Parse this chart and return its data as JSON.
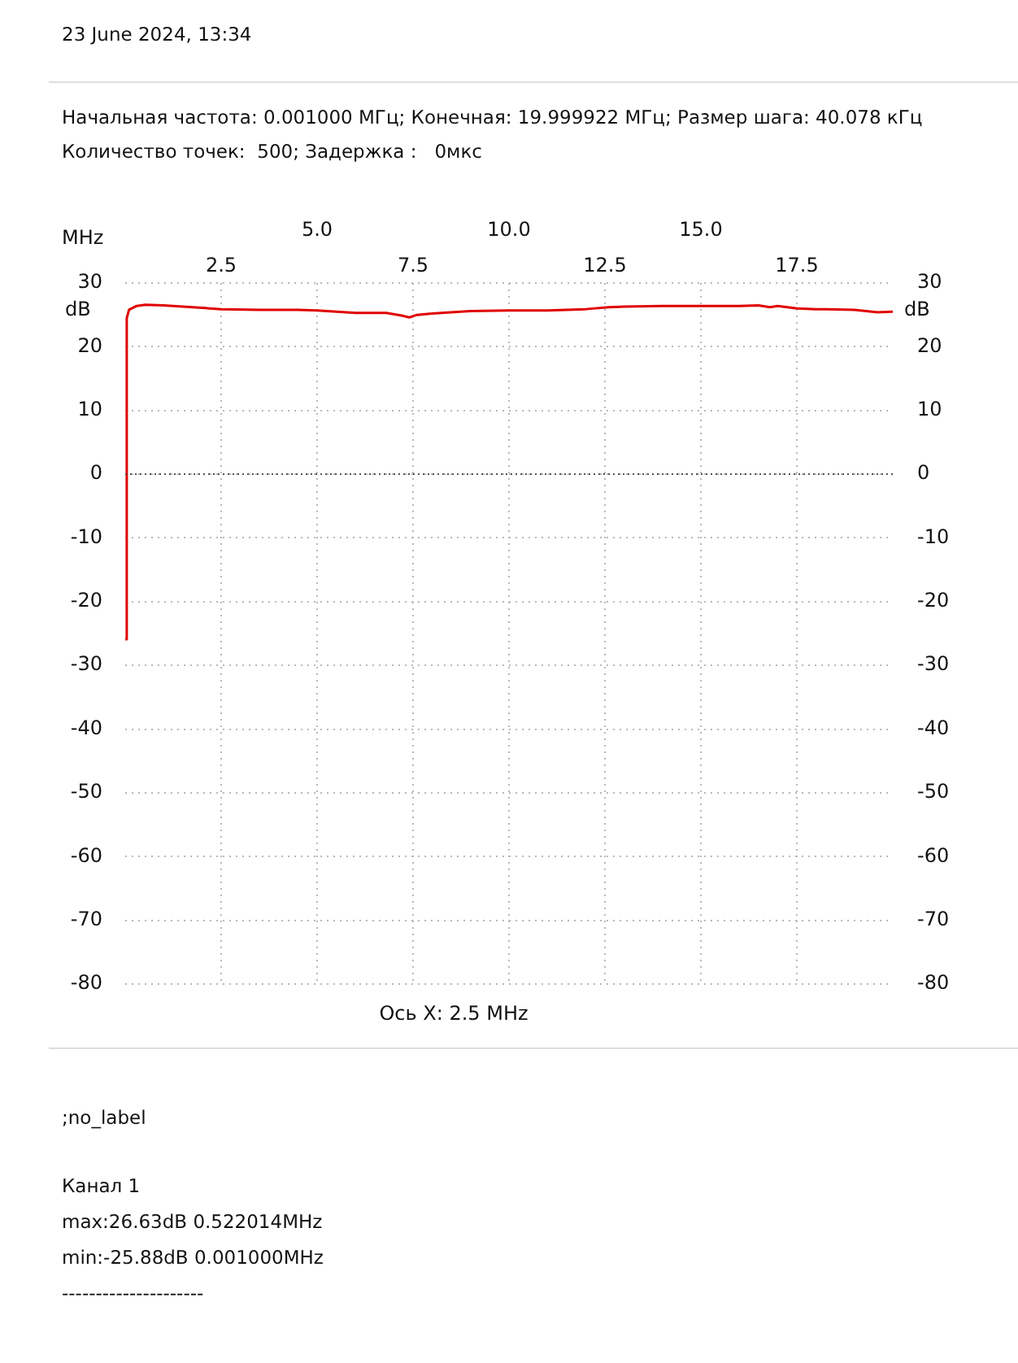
{
  "chart_data": {
    "type": "line",
    "title": "23 June 2024, 13:34",
    "subtitle": "Начальная частота: 0.001000 МГц; Конечная: 19.999922 МГц; Размер шага: 40.078 кГц\nКоличество точек:  500; Задержка :   0мкс",
    "xlabel": "MHz",
    "ylabel": "dB",
    "y2label": "dB",
    "x": [
      0.001,
      0.04,
      0.1,
      0.3,
      0.522,
      1.0,
      1.5,
      2.0,
      2.5,
      3.5,
      4.5,
      5.0,
      5.5,
      6.0,
      6.8,
      7.2,
      7.4,
      7.6,
      8.0,
      8.5,
      9.0,
      10,
      11,
      12,
      12.6,
      13,
      14,
      15,
      16,
      16.5,
      16.8,
      17.0,
      17.5,
      18,
      19,
      19.6,
      19.999922
    ],
    "series": [
      {
        "color": "#e00000",
        "values": [
          -25.9,
          24.5,
          25.8,
          26.4,
          26.6,
          26.5,
          26.3,
          26.1,
          25.9,
          25.8,
          25.8,
          25.7,
          25.5,
          25.3,
          25.3,
          24.9,
          24.6,
          25.0,
          25.2,
          25.4,
          25.6,
          25.7,
          25.7,
          25.9,
          26.2,
          26.3,
          26.4,
          26.4,
          26.4,
          26.5,
          26.2,
          26.4,
          26.0,
          25.9,
          25.8,
          25.4,
          25.5
        ]
      }
    ],
    "xlim": [
      0,
      20
    ],
    "xticks": [
      2.5,
      7.5,
      12.5,
      17.5
    ],
    "x2lim": [
      0,
      20
    ],
    "x2ticks": [
      {
        "value": 5,
        "label": "5.0"
      },
      {
        "value": 10,
        "label": "10.0"
      },
      {
        "value": 15,
        "label": "15.0"
      }
    ],
    "ylim": [
      -80,
      30
    ],
    "yticks": [
      30,
      20,
      10,
      0,
      -10,
      -20,
      -30,
      -40,
      -50,
      -60,
      -70,
      -80
    ],
    "y2lim": [
      -80,
      30
    ],
    "y2ticks": [
      30,
      20,
      10,
      0,
      -10,
      -20,
      -30,
      -40,
      -50,
      -60,
      -70,
      -80
    ],
    "ref_lines": [
      {
        "axis": "y",
        "value": 0,
        "color": "#555555",
        "line_style": "dotted"
      }
    ],
    "grid": true,
    "legend": false,
    "marker": "none",
    "line_style": "solid",
    "annotations": [
      "Ось X: 2.5 MHz",
      ";no_label",
      "Канал 1",
      "max:26.63dB 0.522014MHz",
      "min:-25.88dB 0.001000MHz",
      "---------------------"
    ]
  }
}
